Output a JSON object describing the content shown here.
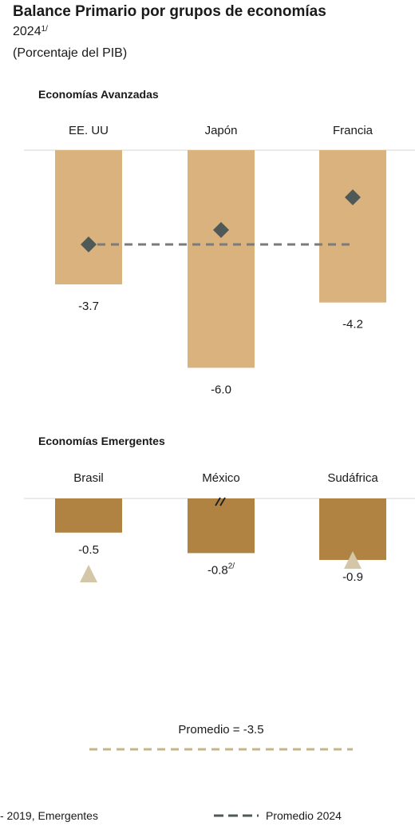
{
  "header": {
    "title": "Balance Primario por grupos de economías",
    "year": "2024",
    "year_note": "1/",
    "unit": "(Porcentaje del PIB)"
  },
  "colors": {
    "advanced_bar": "#d9b27e",
    "emerging_bar": "#b08342",
    "marker_dark": "#4f5a58",
    "marker_light": "#d3c7a8",
    "avg_dark": "#7b7b7b",
    "avg_light": "#c6b48a",
    "baseline": "#d6d6d6"
  },
  "chart_data": [
    {
      "type": "bar",
      "panel": "Economías Avanzadas",
      "categories": [
        "EE. UU",
        "Japón",
        "Francia"
      ],
      "values": [
        -3.7,
        -6.0,
        -4.2
      ],
      "value_labels": [
        "-3.7",
        "-6.0",
        "-4.2"
      ],
      "marker_values": [
        -2.6,
        -2.2,
        -1.3
      ],
      "average_2024": -2.6,
      "ylim": [
        -6.5,
        0
      ]
    },
    {
      "type": "bar",
      "panel": "Economías Emergentes",
      "categories": [
        "Brasil",
        "México",
        "Sudáfrica"
      ],
      "values": [
        -0.5,
        -0.8,
        -0.9
      ],
      "value_labels": [
        "-0.5",
        "-0.8",
        "-0.9"
      ],
      "value_notes": [
        "",
        "2/",
        ""
      ],
      "break_marker": [
        false,
        true,
        false
      ],
      "marker_values": [
        -1.1,
        null,
        -0.9
      ],
      "average_label": "Promedio = -3.5",
      "average_2024": -3.5,
      "ylim": [
        -3.8,
        0
      ]
    }
  ],
  "legend": {
    "left": "- 2019, Emergentes",
    "right": "Promedio 2024"
  }
}
